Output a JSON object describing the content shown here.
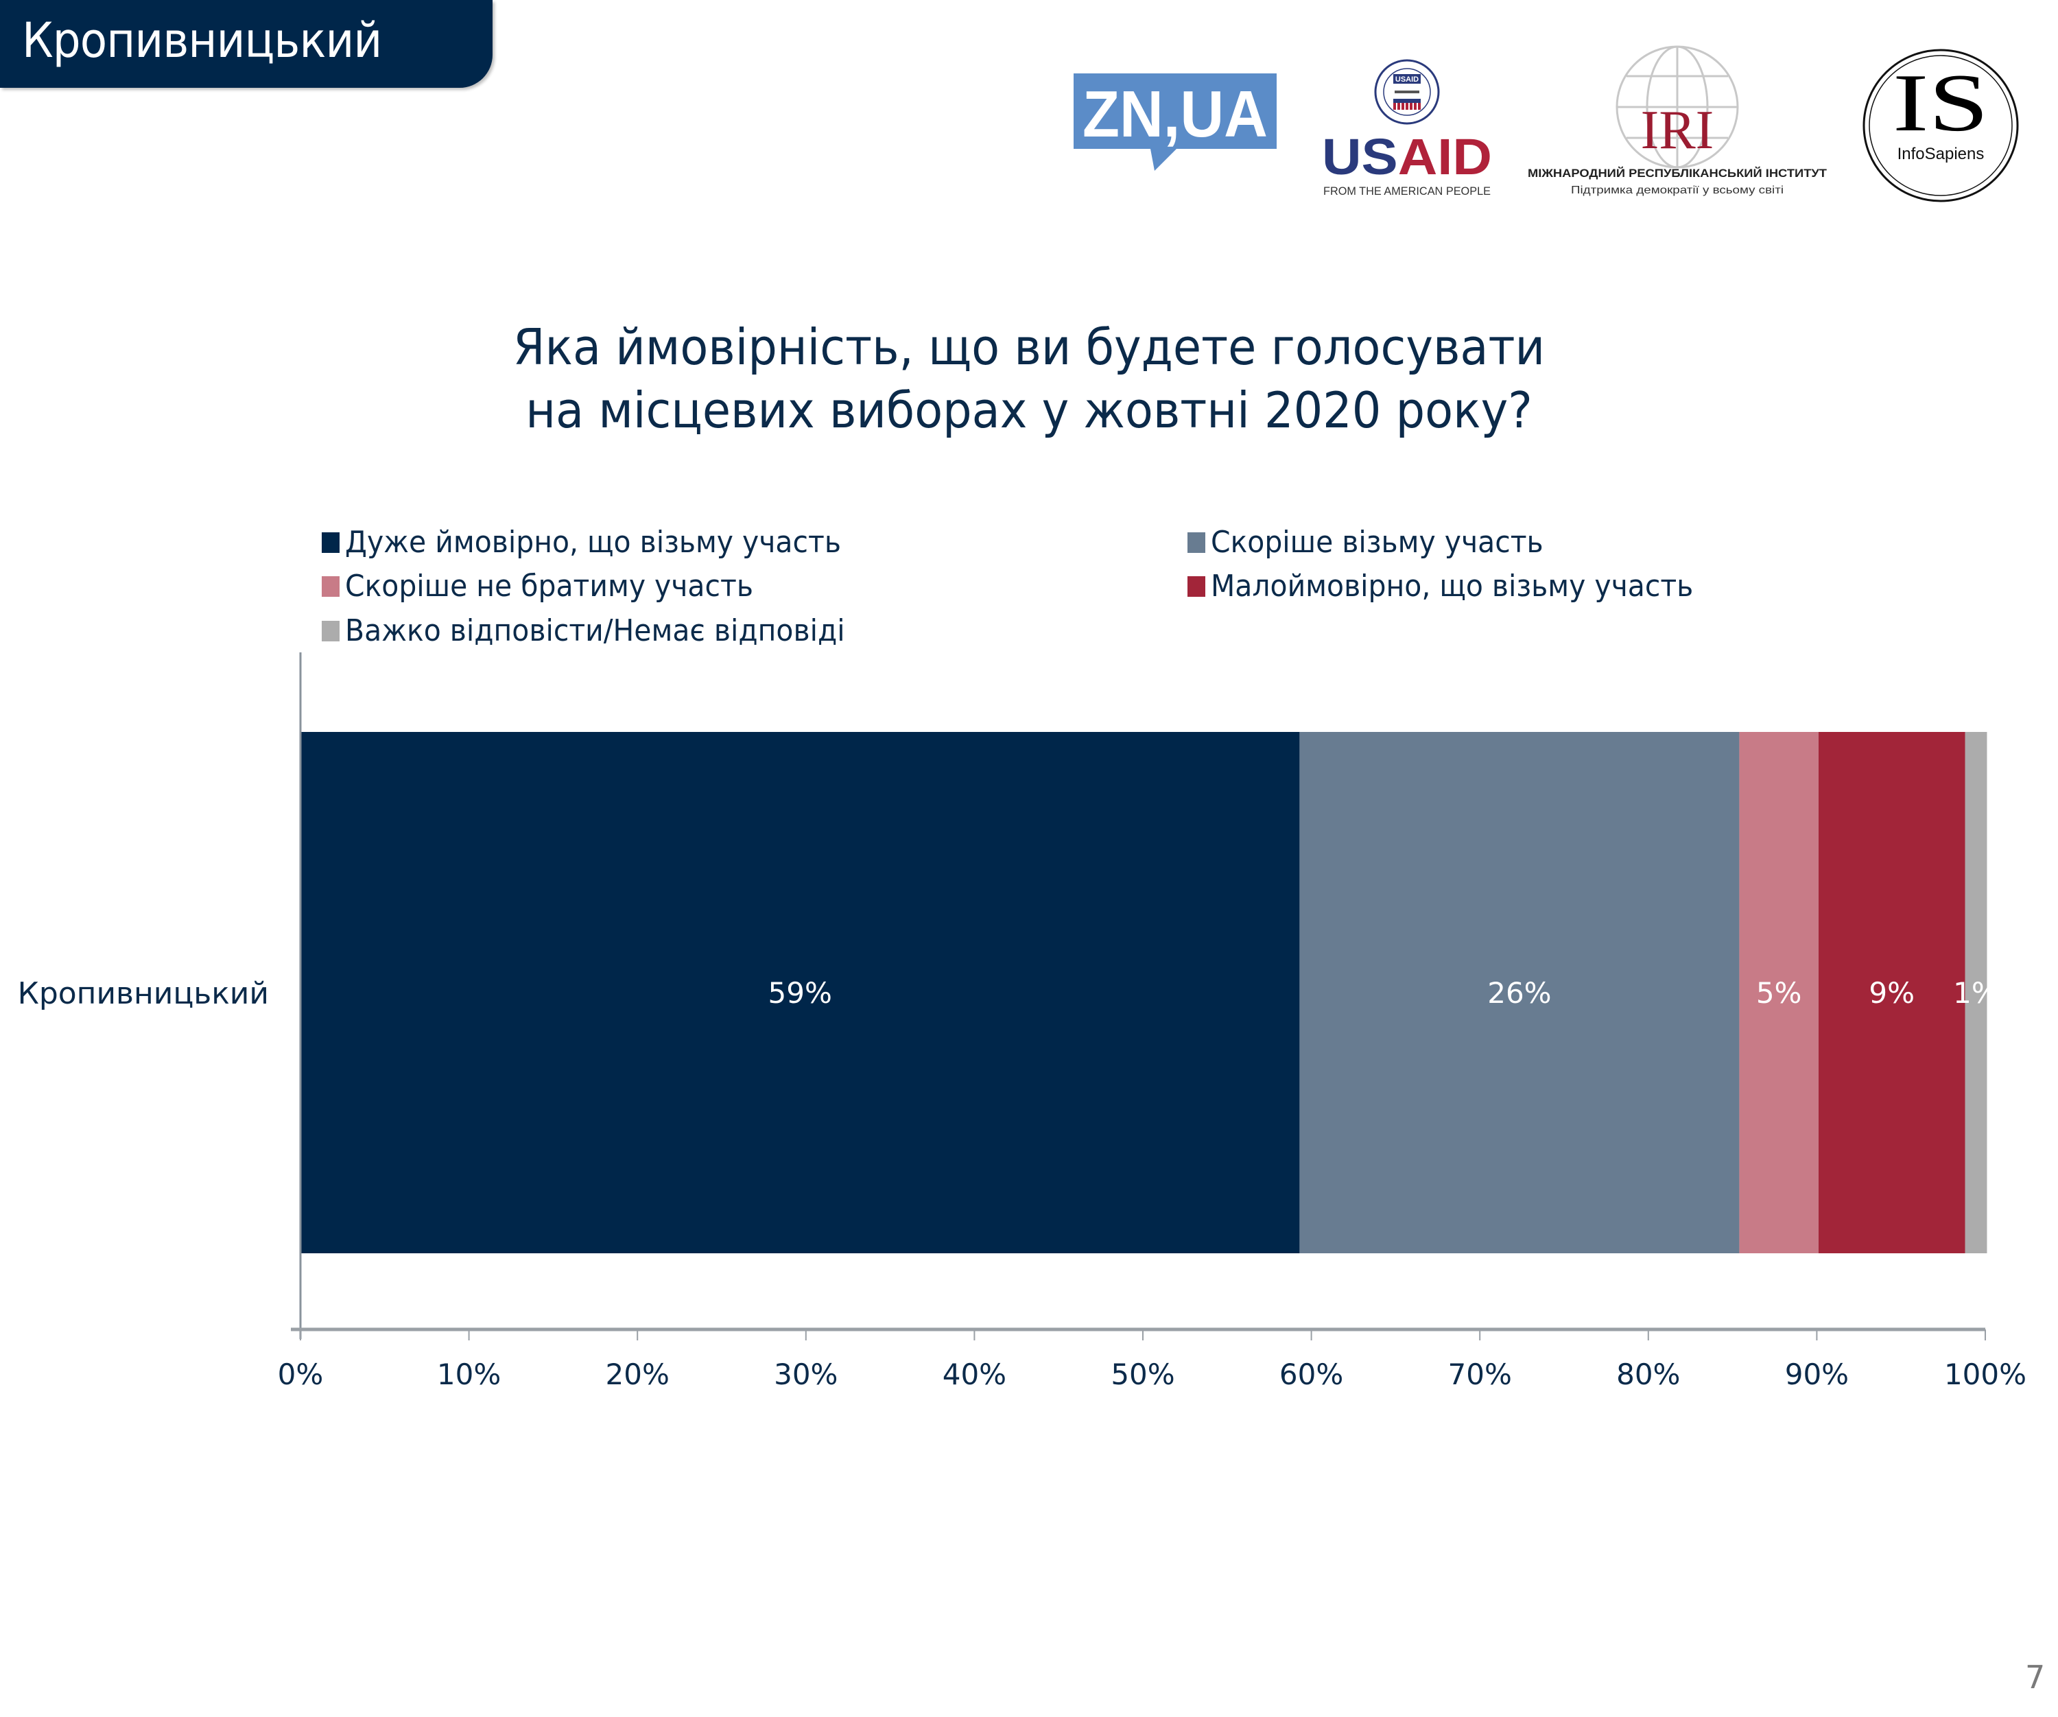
{
  "header": {
    "title": "Кропивницький"
  },
  "logos": {
    "znua": {
      "text": "ZN,UA",
      "color": "#5b8cc8"
    },
    "usaid": {
      "seal_text": "USAID",
      "wordmark_us": "US",
      "wordmark_aid": "AID",
      "tagline": "FROM THE AMERICAN PEOPLE",
      "color_blue": "#2a3a7c",
      "color_red": "#b0223a"
    },
    "iri": {
      "text": "IRI",
      "name": "МІЖНАРОДНИЙ РЕСПУБЛІКАНСЬКИЙ ІНСТИТУТ",
      "tagline": "Підтримка демократії у всьому світі",
      "color": "#9b1c31"
    },
    "infosapiens": {
      "text": "IS",
      "name": "InfoSapiens"
    }
  },
  "page_number": "7",
  "chart_data": {
    "type": "bar",
    "orientation": "horizontal",
    "stacked": true,
    "title": "Яка ймовірність, що ви будете голосувати на місцевих виборах у жовтні 2020 року?",
    "title_lines": [
      "Яка ймовірність, що ви будете голосувати",
      "на місцевих виборах у жовтні 2020 року?"
    ],
    "categories": [
      "Кропивницький"
    ],
    "series": [
      {
        "name": "Дуже ймовірно, що візьму участь",
        "values": [
          59.3
        ],
        "label": "59%",
        "color": "#00264a"
      },
      {
        "name": "Скоріше візьму участь",
        "values": [
          26.1
        ],
        "label": "26%",
        "color": "#687c91"
      },
      {
        "name": "Скоріше не братиму участь",
        "values": [
          4.7
        ],
        "label": "5%",
        "color": "#c87b87"
      },
      {
        "name": "Малоймовірно, що візьму участь",
        "values": [
          8.7
        ],
        "label": "9%",
        "color": "#a22539"
      },
      {
        "name": "Важко відповісти/Немає відповіді",
        "values": [
          1.3
        ],
        "label": "1%",
        "color": "#acacac"
      }
    ],
    "xlim": [
      0,
      100
    ],
    "xticks": [
      "0%",
      "10%",
      "20%",
      "30%",
      "40%",
      "50%",
      "60%",
      "70%",
      "80%",
      "90%",
      "100%"
    ],
    "xlabel": "",
    "ylabel": "",
    "grid": false,
    "legend_position": "top"
  }
}
